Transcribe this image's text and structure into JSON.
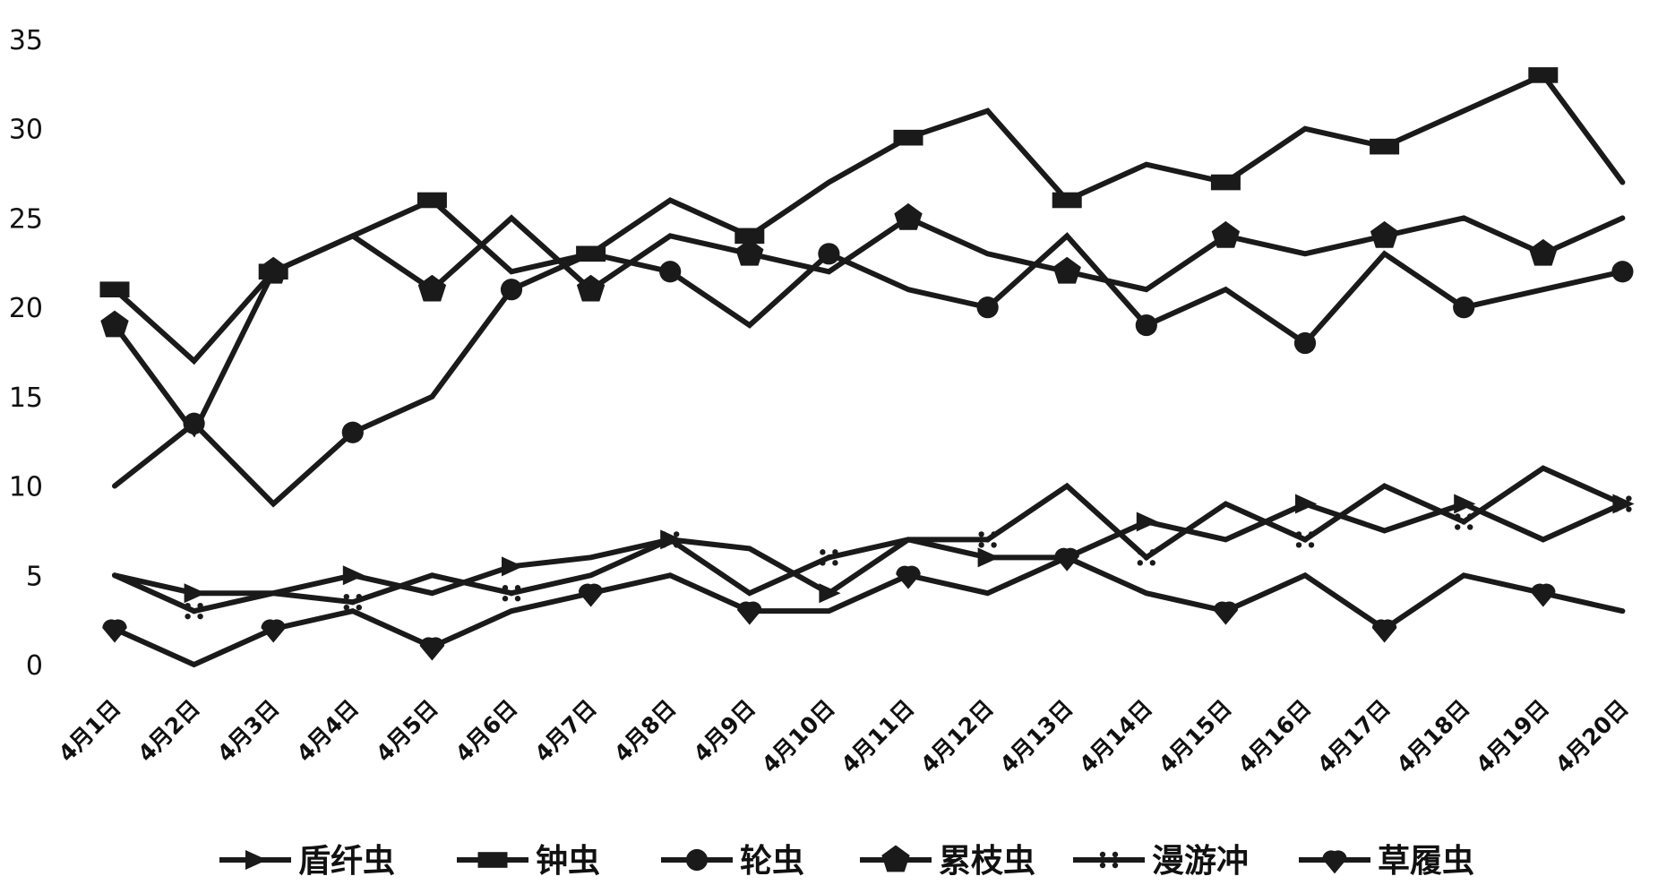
{
  "chart_data": {
    "type": "line",
    "title": "",
    "xlabel": "",
    "ylabel": "",
    "ylim": [
      0,
      35
    ],
    "yticks": [
      0,
      5,
      10,
      15,
      20,
      25,
      30,
      35
    ],
    "grid": false,
    "legend_position": "bottom",
    "line_color": "#1a1a1a",
    "categories": [
      "4月1日",
      "4月2日",
      "4月3日",
      "4月4日",
      "4月5日",
      "4月6日",
      "4月7日",
      "4月8日",
      "4月9日",
      "4月10日",
      "4月11日",
      "4月12日",
      "4月13日",
      "4月14日",
      "4月15日",
      "4月16日",
      "4月17日",
      "4月18日",
      "4月19日",
      "4月20日"
    ],
    "series": [
      {
        "name": "盾纤虫",
        "marker": "triangle-right",
        "values": [
          5,
          4,
          4,
          5,
          4,
          5.5,
          6,
          7,
          6.5,
          4,
          7,
          6,
          6,
          8,
          7,
          9,
          7.5,
          9,
          7,
          9
        ]
      },
      {
        "name": "钟虫",
        "marker": "square",
        "values": [
          21,
          17,
          22,
          24,
          26,
          22,
          23,
          26,
          24,
          27,
          29.5,
          31,
          26,
          28,
          27,
          30,
          29,
          31,
          33,
          27
        ]
      },
      {
        "name": "轮虫",
        "marker": "circle",
        "values": [
          10,
          13.5,
          9,
          13,
          15,
          21,
          23,
          22,
          19,
          23,
          21,
          20,
          24,
          19,
          21,
          18,
          23,
          20,
          21,
          22
        ]
      },
      {
        "name": "累枝虫",
        "marker": "pentagon",
        "values": [
          19,
          13,
          22,
          24,
          21,
          25,
          21,
          24,
          23,
          22,
          25,
          23,
          22,
          21,
          24,
          23,
          24,
          25,
          23,
          25
        ]
      },
      {
        "name": "漫游冲",
        "marker": "asterisk",
        "values": [
          5,
          3,
          4,
          3.5,
          5,
          4,
          5,
          7,
          4,
          6,
          7,
          7,
          10,
          6,
          9,
          7,
          10,
          8,
          11,
          9
        ]
      },
      {
        "name": "草履虫",
        "marker": "heart",
        "values": [
          2,
          0,
          2,
          3,
          1,
          3,
          4,
          5,
          3,
          3,
          5,
          4,
          6,
          4,
          3,
          5,
          2,
          5,
          4,
          3
        ]
      }
    ]
  }
}
